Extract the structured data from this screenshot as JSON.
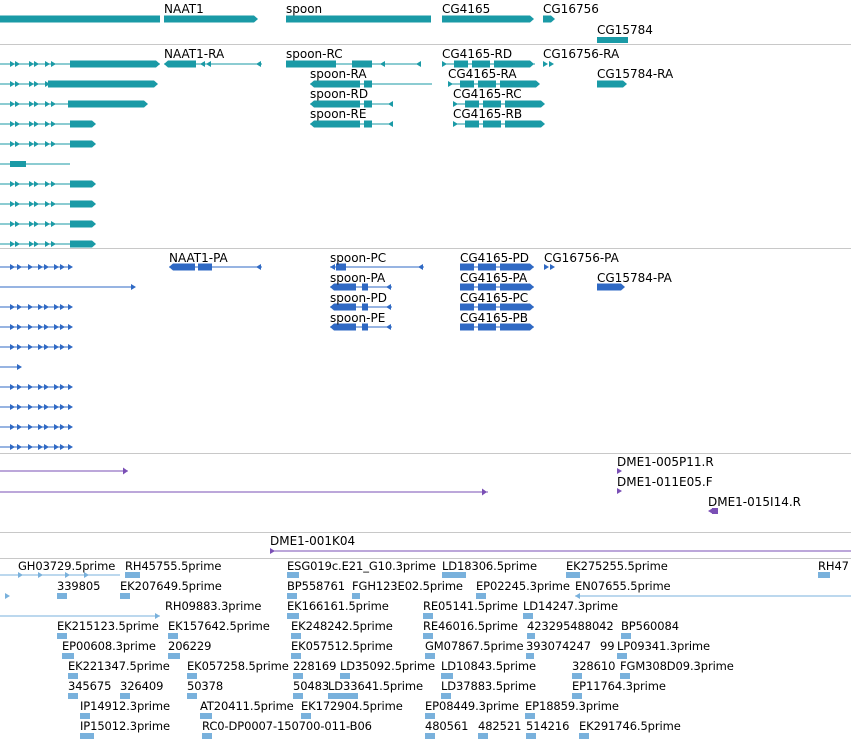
{
  "colors": {
    "gene": "#1a9aa6",
    "protein": "#2f69c4",
    "clone": "#7a4fb5",
    "est": "#79b1dc",
    "separator": "#c8c8c8"
  },
  "tracks": {
    "genes": {
      "labels": [
        "NAAT1",
        "spoon",
        "CG4165",
        "CG16756",
        "CG15784"
      ]
    },
    "transcripts": {
      "labels": [
        "NAAT1-RA",
        "spoon-RC",
        "spoon-RA",
        "spoon-RD",
        "spoon-RE",
        "CG4165-RD",
        "CG4165-RA",
        "CG4165-RC",
        "CG4165-RB",
        "CG16756-RA",
        "CG15784-RA"
      ]
    },
    "proteins": {
      "labels": [
        "NAAT1-PA",
        "spoon-PC",
        "spoon-PA",
        "spoon-PD",
        "spoon-PE",
        "CG4165-PD",
        "CG4165-PA",
        "CG4165-PC",
        "CG4165-PB",
        "CG16756-PA",
        "CG15784-PA"
      ]
    },
    "clones": {
      "labels": [
        "DME1-005P11.R",
        "DME1-011E05.F",
        "DME1-015I14.R",
        "DME1-001K04"
      ]
    },
    "ests": {
      "labels": [
        "GH03729.5prime",
        "RH45755.5prime",
        "ESG019c.E21_G10.3prime",
        "LD18306.5prime",
        "EK275255.5prime",
        "RH47",
        "339805",
        "EK207649.5prime",
        "BP558761",
        "FGH123E02.5prime",
        "EP02245.3prime",
        "EN07655.5prime",
        "RH09883.3prime",
        "EK166161.5prime",
        "RE05141.5prime",
        "LD14247.3prime",
        "EK215123.5prime",
        "EK157642.5prime",
        "EK248242.5prime",
        "RE46016.5prime",
        "423295488042",
        "BP560084",
        "EP00608.3prime",
        "206229",
        "EK057512.5prime",
        "GM07867.5prime",
        "393074247",
        "99",
        "LP09341.3prime",
        "EK221347.5prime",
        "EK057258.5prime",
        "228169",
        "LD35092.5prime",
        "LD10843.5prime",
        "328610",
        "FGM308D09.3prime",
        "345675",
        "326409",
        "50378",
        "50483",
        "LD33641.5prime",
        "LD37883.5prime",
        "EP11764.3prime",
        "IP14912.3prime",
        "AT20411.5prime",
        "EK172904.5prime",
        "EP08449.3prime",
        "EP18859.3prime",
        "IP15012.3prime",
        "RC0-DP0007-150700-011-B06",
        "480561",
        "482521",
        "514216",
        "EK291746.5prime"
      ]
    }
  }
}
